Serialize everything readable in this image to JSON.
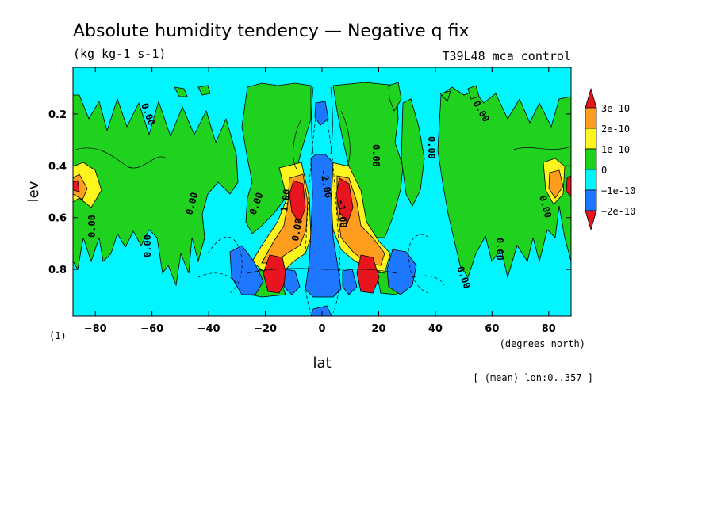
{
  "chart_data": {
    "type": "heatmap",
    "title": "Absolute humidity tendency — Negative q fix",
    "units": "(kg kg-1 s-1)",
    "experiment": "T39L48_mca_control",
    "xlabel": "lat",
    "x_units": "(degrees_north)",
    "ylabel": "lev",
    "y_units": "(1)",
    "note": "[ (mean) lon:0..357 ]",
    "xlim": [
      -87.9,
      87.9
    ],
    "ylim": [
      0.98,
      0.02
    ],
    "x_ticks": [
      -80,
      -60,
      -40,
      -20,
      0,
      20,
      40,
      60,
      80
    ],
    "x_tick_labels": [
      "−80",
      "−60",
      "−40",
      "−20",
      "0",
      "20",
      "40",
      "60",
      "80"
    ],
    "y_ticks": [
      0.2,
      0.4,
      0.6,
      0.8
    ],
    "y_tick_labels": [
      "0.2",
      "0.4",
      "0.6",
      "0.8"
    ],
    "colorbar": {
      "levels": [
        "3e-10",
        "2e-10",
        "1e-10",
        "0",
        "−1e-10",
        "−2e-10"
      ],
      "colors": [
        "#e8141e",
        "#ff9e1e",
        "#fff51e",
        "#1ed21e",
        "#00f5ff",
        "#1e78ff",
        "#e8141e"
      ]
    },
    "contour_labels": [
      "0.00",
      "0.00",
      "0.00",
      "0.00",
      "0.00",
      "0.00",
      "0.00",
      "0.00",
      "0.00",
      "0.00",
      "0.00",
      "1.00",
      "-2.00",
      "-1.00",
      "0.00"
    ]
  }
}
